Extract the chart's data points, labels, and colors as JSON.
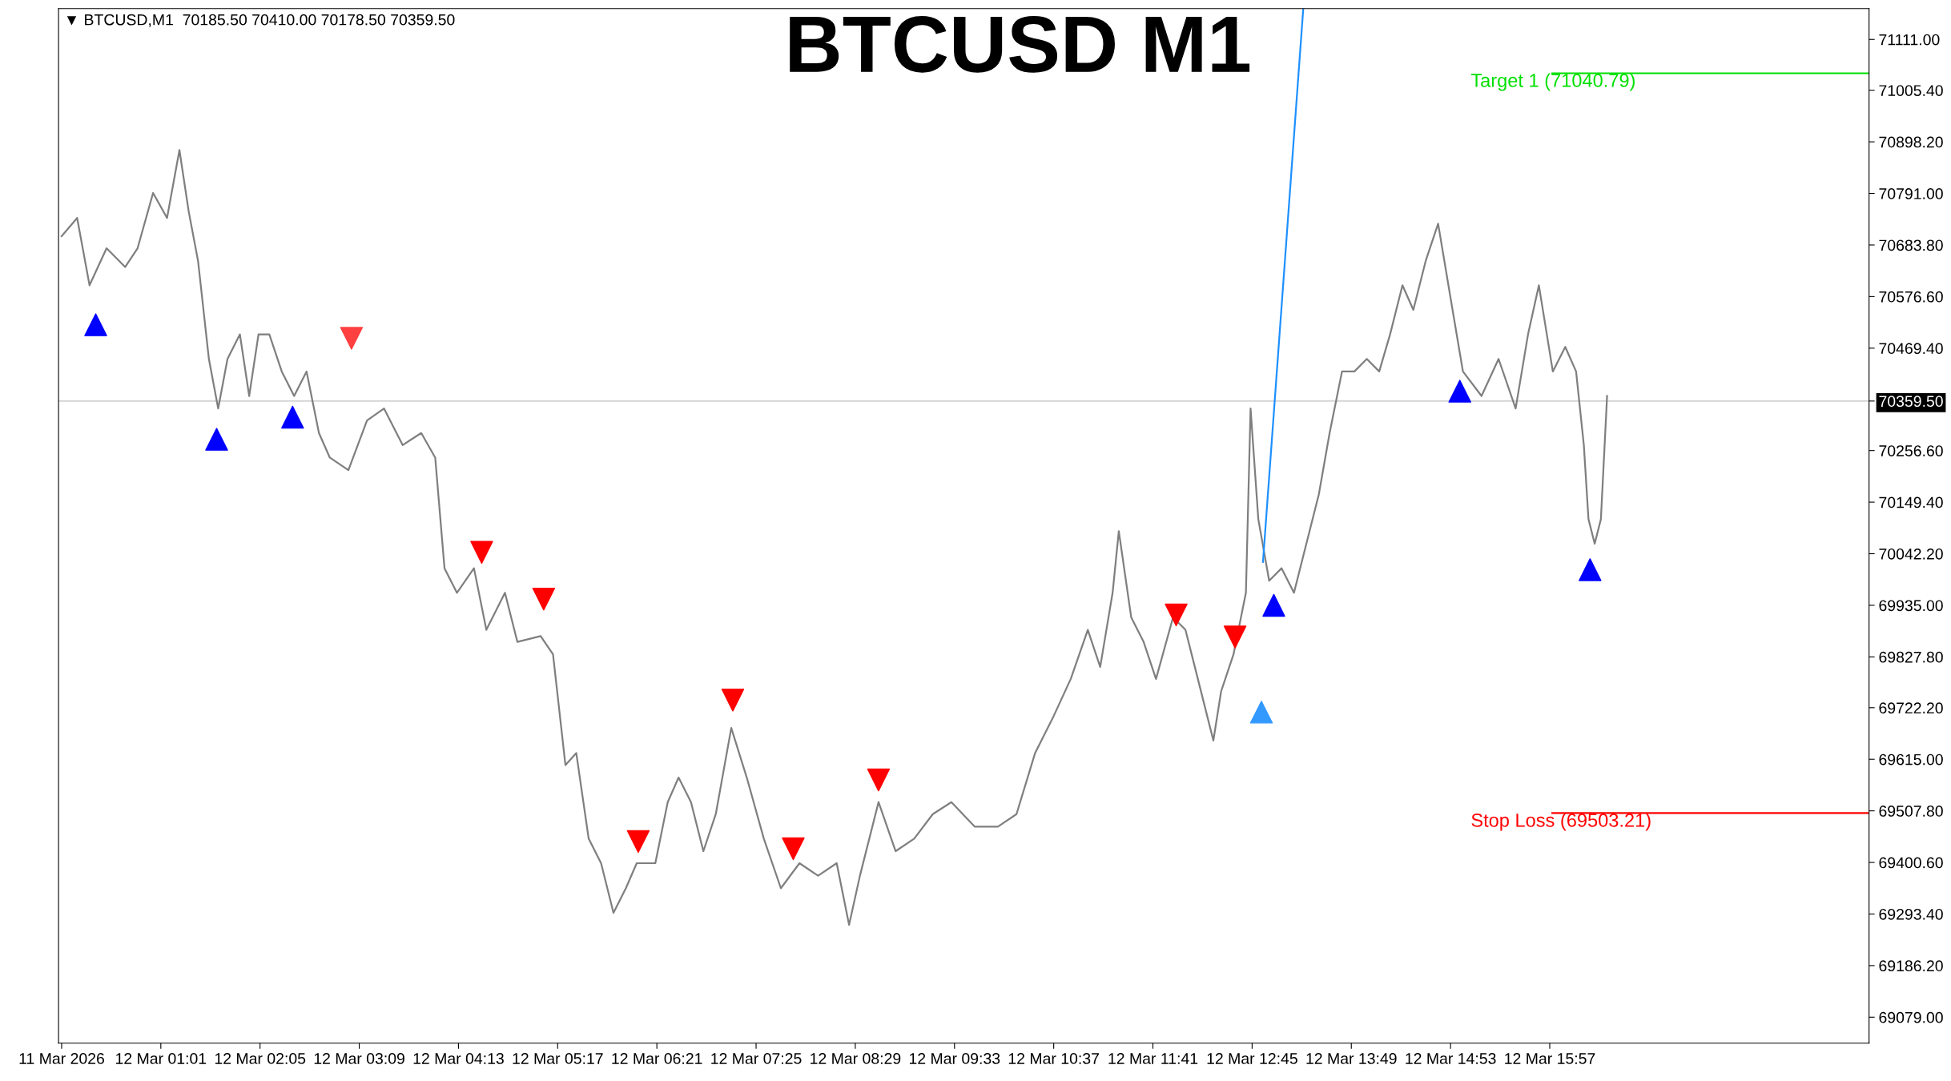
{
  "chart_data": {
    "type": "line",
    "title": "BTCUSD M1",
    "annotations": [
      "▼ BTCUSD,M1  70185.50 70410.00 70178.50 70359.50"
    ],
    "series": [
      {
        "type": "line",
        "color": "#7f7f7f",
        "x": [
          "2026-03-11T23:57",
          "2026-03-12T00:07",
          "2026-03-12T00:15",
          "2026-03-12T00:26",
          "2026-03-12T00:38",
          "2026-03-12T00:46",
          "2026-03-12T00:56",
          "2026-03-12T01:05",
          "2026-03-12T01:13",
          "2026-03-12T01:19",
          "2026-03-12T01:25",
          "2026-03-12T01:32",
          "2026-03-12T01:38",
          "2026-03-12T01:44",
          "2026-03-12T01:52",
          "2026-03-12T01:58",
          "2026-03-12T02:04",
          "2026-03-12T02:11",
          "2026-03-12T02:19",
          "2026-03-12T02:27",
          "2026-03-12T02:35",
          "2026-03-12T02:43",
          "2026-03-12T02:50",
          "2026-03-12T03:02",
          "2026-03-12T03:14",
          "2026-03-12T03:25",
          "2026-03-12T03:37",
          "2026-03-12T03:49",
          "2026-03-12T03:58",
          "2026-03-12T04:04",
          "2026-03-12T04:12",
          "2026-03-12T04:23",
          "2026-03-12T04:31",
          "2026-03-12T04:43",
          "2026-03-12T04:51",
          "2026-03-12T05:06",
          "2026-03-12T05:14",
          "2026-03-12T05:22",
          "2026-03-12T05:29",
          "2026-03-12T05:37",
          "2026-03-12T05:45",
          "2026-03-12T05:53",
          "2026-03-12T06:01",
          "2026-03-12T06:08",
          "2026-03-12T06:20",
          "2026-03-12T06:28",
          "2026-03-12T06:35",
          "2026-03-12T06:43",
          "2026-03-12T06:51",
          "2026-03-12T06:59",
          "2026-03-12T07:09",
          "2026-03-12T07:19",
          "2026-03-12T07:30",
          "2026-03-12T07:41",
          "2026-03-12T07:53",
          "2026-03-12T08:05",
          "2026-03-12T08:17",
          "2026-03-12T08:25",
          "2026-03-12T08:32",
          "2026-03-12T08:44",
          "2026-03-12T08:55",
          "2026-03-12T09:07",
          "2026-03-12T09:19",
          "2026-03-12T09:31",
          "2026-03-12T09:46",
          "2026-03-12T10:01",
          "2026-03-12T10:13",
          "2026-03-12T10:25",
          "2026-03-12T10:37",
          "2026-03-12T10:48",
          "2026-03-12T10:59",
          "2026-03-12T11:07",
          "2026-03-12T11:15",
          "2026-03-12T11:19",
          "2026-03-12T11:27",
          "2026-03-12T11:35",
          "2026-03-12T11:43",
          "2026-03-12T11:54",
          "2026-03-12T12:02",
          "2026-03-12T12:10",
          "2026-03-12T12:20",
          "2026-03-12T12:25",
          "2026-03-12T12:33",
          "2026-03-12T12:41",
          "2026-03-12T12:44",
          "2026-03-12T12:49",
          "2026-03-12T12:56",
          "2026-03-12T13:04",
          "2026-03-12T13:12",
          "2026-03-12T13:20",
          "2026-03-12T13:28",
          "2026-03-12T13:35",
          "2026-03-12T13:43",
          "2026-03-12T13:51",
          "2026-03-12T13:59",
          "2026-03-12T14:07",
          "2026-03-12T14:14",
          "2026-03-12T14:22",
          "2026-03-12T14:29",
          "2026-03-12T14:37",
          "2026-03-12T14:45",
          "2026-03-12T14:53",
          "2026-03-12T15:01",
          "2026-03-12T15:13",
          "2026-03-12T15:24",
          "2026-03-12T15:35",
          "2026-03-12T15:43",
          "2026-03-12T15:50",
          "2026-03-12T15:59",
          "2026-03-12T16:07",
          "2026-03-12T16:14",
          "2026-03-12T16:19",
          "2026-03-12T16:22",
          "2026-03-12T16:26",
          "2026-03-12T16:30",
          "2026-03-12T16:34"
        ],
        "values": [
          70702,
          70740,
          70600,
          70677,
          70638,
          70677,
          70792,
          70740,
          70881,
          70753,
          70651,
          70447,
          70344,
          70447,
          70498,
          70370,
          70498,
          70498,
          70421,
          70370,
          70421,
          70293,
          70242,
          70216,
          70319,
          70344,
          70268,
          70293,
          70242,
          70012,
          69961,
          70012,
          69884,
          69961,
          69859,
          69871,
          69833,
          69603,
          69628,
          69450,
          69399,
          69296,
          69347,
          69399,
          69399,
          69526,
          69577,
          69526,
          69424,
          69501,
          69680,
          69577,
          69450,
          69347,
          69399,
          69373,
          69399,
          69271,
          69373,
          69526,
          69424,
          69450,
          69501,
          69526,
          69475,
          69475,
          69501,
          69628,
          69705,
          69782,
          69884,
          69807,
          69961,
          70089,
          69910,
          69859,
          69782,
          69910,
          69884,
          69782,
          69654,
          69756,
          69833,
          69961,
          70344,
          70114,
          69986,
          70012,
          69961,
          70063,
          70165,
          70293,
          70421,
          70421,
          70447,
          70421,
          70498,
          70600,
          70549,
          70651,
          70728,
          70574,
          70421,
          70370,
          70447,
          70344,
          70498,
          70600,
          70421,
          70472,
          70421,
          70268,
          70114,
          70063,
          70114,
          70370
        ]
      },
      {
        "type": "line",
        "color": "#1e90ff",
        "x": [
          "2026-03-12T12:52",
          "2026-03-12T13:18"
        ],
        "values": [
          70025,
          71175
        ]
      },
      {
        "type": "scatter",
        "color": "#0000ff",
        "marker": "triangle",
        "x": [
          "2026-03-12T00:19",
          "2026-03-12T01:37",
          "2026-03-12T02:26",
          "2026-03-12T12:59",
          "2026-03-12T14:59",
          "2026-03-12T16:23"
        ],
        "values": [
          70518,
          70280,
          70326,
          69935,
          70380,
          70009
        ]
      },
      {
        "type": "scatter",
        "color": "#ff0000",
        "marker": "triangle_down",
        "x": [
          "2026-03-12T04:28",
          "2026-03-12T05:08",
          "2026-03-12T06:09",
          "2026-03-12T07:10",
          "2026-03-12T07:49",
          "2026-03-12T08:44",
          "2026-03-12T11:56",
          "2026-03-12T12:34"
        ],
        "values": [
          70045,
          69948,
          69444,
          69738,
          69429,
          69572,
          69915,
          69869
        ]
      },
      {
        "type": "scatter",
        "color": "#ff4040",
        "marker": "triangle_down",
        "x": [
          "2026-03-12T03:04"
        ],
        "values": [
          70490
        ]
      },
      {
        "type": "scatter",
        "color": "#3399ff",
        "marker": "triangle",
        "x": [
          "2026-03-12T12:51"
        ],
        "values": [
          69713
        ]
      }
    ],
    "ref_lines": [
      {
        "axis": "y",
        "value": 71040.79,
        "label": "Target 1 (71040.79)",
        "color": "#00e000"
      },
      {
        "axis": "y",
        "value": 69503.21,
        "label": "Stop Loss (69503.21)",
        "color": "#ff0000"
      },
      {
        "axis": "y",
        "value": 70359.5,
        "color": "#c0c0c0"
      }
    ],
    "xlim": [
      "2026-03-11T23:55",
      "2026-03-12T19:23"
    ],
    "xticks": [
      {
        "value": "2026-03-11T23:57",
        "label": "11 Mar 2026"
      },
      {
        "value": "2026-03-12T01:01",
        "label": "12 Mar 01:01"
      },
      {
        "value": "2026-03-12T02:05",
        "label": "12 Mar 02:05"
      },
      {
        "value": "2026-03-12T03:09",
        "label": "12 Mar 03:09"
      },
      {
        "value": "2026-03-12T04:13",
        "label": "12 Mar 04:13"
      },
      {
        "value": "2026-03-12T05:17",
        "label": "12 Mar 05:17"
      },
      {
        "value": "2026-03-12T06:21",
        "label": "12 Mar 06:21"
      },
      {
        "value": "2026-03-12T07:25",
        "label": "12 Mar 07:25"
      },
      {
        "value": "2026-03-12T08:29",
        "label": "12 Mar 08:29"
      },
      {
        "value": "2026-03-12T09:33",
        "label": "12 Mar 09:33"
      },
      {
        "value": "2026-03-12T10:37",
        "label": "12 Mar 10:37"
      },
      {
        "value": "2026-03-12T11:41",
        "label": "12 Mar 11:41"
      },
      {
        "value": "2026-03-12T12:45",
        "label": "12 Mar 12:45"
      },
      {
        "value": "2026-03-12T13:49",
        "label": "12 Mar 13:49"
      },
      {
        "value": "2026-03-12T14:53",
        "label": "12 Mar 14:53"
      },
      {
        "value": "2026-03-12T15:57",
        "label": "12 Mar 15:57"
      }
    ],
    "ylim": [
      69025,
      71175
    ],
    "yticks": [
      {
        "value": 69079,
        "label": "69079.00"
      },
      {
        "value": 69186.2,
        "label": "69186.20"
      },
      {
        "value": 69293.4,
        "label": "69293.40"
      },
      {
        "value": 69400.6,
        "label": "69400.60"
      },
      {
        "value": 69507.8,
        "label": "69507.80"
      },
      {
        "value": 69615,
        "label": "69615.00"
      },
      {
        "value": 69722.2,
        "label": "69722.20"
      },
      {
        "value": 69827.8,
        "label": "69827.80"
      },
      {
        "value": 69935,
        "label": "69935.00"
      },
      {
        "value": 70042.2,
        "label": "70042.20"
      },
      {
        "value": 70149.4,
        "label": "70149.40"
      },
      {
        "value": 70256.6,
        "label": "70256.60"
      },
      {
        "value": 70359.5,
        "label": "70359.50"
      },
      {
        "value": 70469.4,
        "label": "70469.40"
      },
      {
        "value": 70576.6,
        "label": "70576.60"
      },
      {
        "value": 70683.8,
        "label": "70683.80"
      },
      {
        "value": 70791,
        "label": "70791.00"
      },
      {
        "value": 70898.2,
        "label": "70898.20"
      },
      {
        "value": 71005.4,
        "label": "71005.40"
      },
      {
        "value": 71111,
        "label": "71111.00"
      }
    ],
    "grid": false,
    "legend": false
  }
}
